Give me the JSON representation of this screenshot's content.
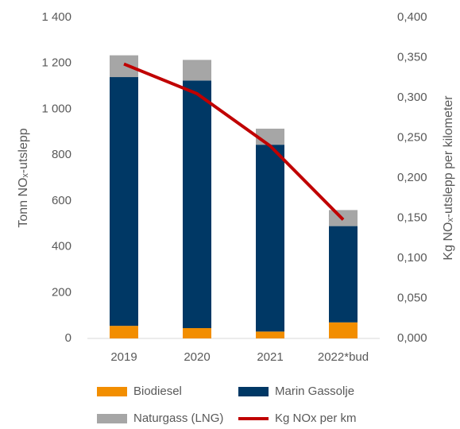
{
  "chart_data": {
    "type": "bar",
    "categories": [
      "2019",
      "2020",
      "2021",
      "2022*bud"
    ],
    "series": [
      {
        "name": "Biodiesel",
        "color": "#f28e00",
        "values": [
          55,
          45,
          30,
          70
        ]
      },
      {
        "name": "Marin Gassolje",
        "color": "#003865",
        "values": [
          1085,
          1080,
          815,
          420
        ]
      },
      {
        "name": "Naturgass (LNG)",
        "color": "#a6a6a6",
        "values": [
          95,
          90,
          70,
          70
        ]
      },
      {
        "name": "Kg NOx per km",
        "color": "#c00000",
        "type": "line",
        "axis": "y2",
        "values": [
          0.342,
          0.305,
          0.24,
          0.148
        ]
      }
    ],
    "y_label": "Tonn NOₓ-utslepp",
    "y2_label": "Kg NOₓ-utslepp per kilometer",
    "ylim": [
      0,
      1400
    ],
    "yticks": [
      0,
      200,
      400,
      600,
      800,
      {
        "value": 1000,
        "label": "1 000"
      },
      {
        "value": 1200,
        "label": "1 200"
      },
      {
        "value": 1400,
        "label": "1 400"
      }
    ],
    "y2lim": [
      0,
      0.4
    ],
    "y2ticks": [
      {
        "value": 0,
        "label": "0,000"
      },
      {
        "value": 0.05,
        "label": "0,050"
      },
      {
        "value": 0.1,
        "label": "0,100"
      },
      {
        "value": 0.15,
        "label": "0,150"
      },
      {
        "value": 0.2,
        "label": "0,200"
      },
      {
        "value": 0.25,
        "label": "0,250"
      },
      {
        "value": 0.3,
        "label": "0,300"
      },
      {
        "value": 0.35,
        "label": "0,350"
      },
      {
        "value": 0.4,
        "label": "0,400"
      }
    ],
    "stacked": true,
    "grid": false
  }
}
